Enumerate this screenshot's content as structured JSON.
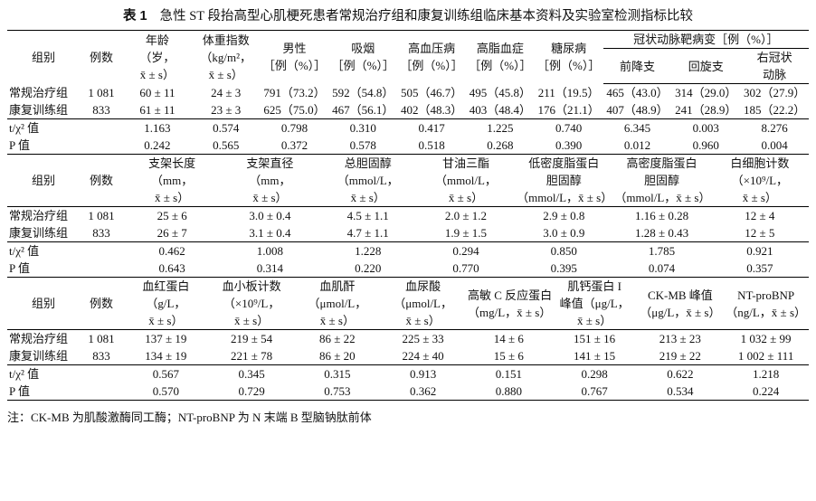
{
  "label": "表 1",
  "title": "急性 ST 段抬高型心肌梗死患者常规治疗组和康复训练组临床基本资料及实验室检测指标比较",
  "sections": [
    {
      "group_label": "组别",
      "n_label": "例数",
      "columns": [
        {
          "lines": [
            "年龄",
            "（岁，",
            "x̄ ± s）"
          ]
        },
        {
          "lines": [
            "体重指数",
            "（kg/m²，",
            "x̄ ± s）"
          ]
        },
        {
          "lines": [
            "男性",
            "［例（%）］"
          ]
        },
        {
          "lines": [
            "吸烟",
            "［例（%）］"
          ]
        },
        {
          "lines": [
            "高血压病",
            "［例（%）］"
          ]
        },
        {
          "lines": [
            "高脂血症",
            "［例（%）］"
          ]
        },
        {
          "lines": [
            "糖尿病",
            "［例（%）］"
          ]
        },
        {
          "title": "冠状动脉靶病变［例（%）］",
          "sub": [
            {
              "lines": [
                "前降支"
              ]
            },
            {
              "lines": [
                "回旋支"
              ]
            },
            {
              "lines": [
                "右冠状",
                "动脉"
              ]
            }
          ]
        }
      ],
      "rows": [
        {
          "label": "常规治疗组",
          "n": "1 081",
          "values": [
            "60 ± 11",
            "24 ± 3",
            "791（73.2）",
            "592（54.8）",
            "505（46.7）",
            "495（45.8）",
            "211（19.5）",
            "465（43.0）",
            "314（29.0）",
            "302（27.9）"
          ]
        },
        {
          "label": "康复训练组",
          "n": "833",
          "values": [
            "61 ± 11",
            "23 ± 3",
            "625（75.0）",
            "467（56.1）",
            "402（48.3）",
            "403（48.4）",
            "176（21.1）",
            "407（48.9）",
            "241（28.9）",
            "185（22.2）"
          ]
        },
        {
          "label": "t/χ² 值",
          "values": [
            "1.163",
            "0.574",
            "0.798",
            "0.310",
            "0.417",
            "1.225",
            "0.740",
            "6.345",
            "0.003",
            "8.276"
          ]
        },
        {
          "label": "P 值",
          "values": [
            "0.242",
            "0.565",
            "0.372",
            "0.578",
            "0.518",
            "0.268",
            "0.390",
            "0.012",
            "0.960",
            "0.004"
          ]
        }
      ]
    },
    {
      "group_label": "组别",
      "n_label": "例数",
      "columns": [
        {
          "lines": [
            "支架长度",
            "（mm，",
            "x̄ ± s）"
          ]
        },
        {
          "lines": [
            "支架直径",
            "（mm，",
            "x̄ ± s）"
          ]
        },
        {
          "lines": [
            "总胆固醇",
            "（mmol/L，",
            "x̄ ± s）"
          ]
        },
        {
          "lines": [
            "甘油三酯",
            "（mmol/L，",
            "x̄ ± s）"
          ]
        },
        {
          "lines": [
            "低密度脂蛋白",
            "胆固醇",
            "（mmol/L，x̄ ± s）"
          ]
        },
        {
          "lines": [
            "高密度脂蛋白",
            "胆固醇",
            "（mmol/L，x̄ ± s）"
          ]
        },
        {
          "lines": [
            "白细胞计数",
            "（×10⁹/L，",
            "x̄ ± s）"
          ]
        }
      ],
      "rows": [
        {
          "label": "常规治疗组",
          "n": "1 081",
          "values": [
            "25 ± 6",
            "3.0 ± 0.4",
            "4.5 ± 1.1",
            "2.0 ± 1.2",
            "2.9 ± 0.8",
            "1.16 ± 0.28",
            "12 ± 4"
          ]
        },
        {
          "label": "康复训练组",
          "n": "833",
          "values": [
            "26 ± 7",
            "3.1 ± 0.4",
            "4.7 ± 1.1",
            "1.9 ± 1.5",
            "3.0 ± 0.9",
            "1.28 ± 0.43",
            "12 ± 5"
          ]
        },
        {
          "label": "t/χ² 值",
          "values": [
            "0.462",
            "1.008",
            "1.228",
            "0.294",
            "0.850",
            "1.785",
            "0.921"
          ]
        },
        {
          "label": "P 值",
          "values": [
            "0.643",
            "0.314",
            "0.220",
            "0.770",
            "0.395",
            "0.074",
            "0.357"
          ]
        }
      ]
    },
    {
      "group_label": "组别",
      "n_label": "例数",
      "columns": [
        {
          "lines": [
            "血红蛋白",
            "（g/L，",
            "x̄ ± s）"
          ]
        },
        {
          "lines": [
            "血小板计数",
            "（×10⁹/L，",
            "x̄ ± s）"
          ]
        },
        {
          "lines": [
            "血肌酐",
            "（μmol/L，",
            "x̄ ± s）"
          ]
        },
        {
          "lines": [
            "血尿酸",
            "（μmol/L，",
            "x̄ ± s）"
          ]
        },
        {
          "lines": [
            "高敏 C 反应蛋白",
            "（mg/L，x̄ ± s）"
          ]
        },
        {
          "lines": [
            "肌钙蛋白 I",
            "峰值（μg/L，",
            "x̄ ± s）"
          ]
        },
        {
          "lines": [
            "CK-MB 峰值",
            "（μg/L，x̄ ± s）"
          ]
        },
        {
          "lines": [
            "NT-proBNP",
            "（ng/L，x̄ ± s）"
          ]
        }
      ],
      "rows": [
        {
          "label": "常规治疗组",
          "n": "1 081",
          "values": [
            "137 ± 19",
            "219 ± 54",
            "86 ± 22",
            "225 ± 33",
            "14 ± 6",
            "151 ± 16",
            "213 ± 23",
            "1 032 ± 99"
          ]
        },
        {
          "label": "康复训练组",
          "n": "833",
          "values": [
            "134 ± 19",
            "221 ± 78",
            "86 ± 20",
            "224 ± 40",
            "15 ± 6",
            "141 ± 15",
            "219 ± 22",
            "1 002 ± 111"
          ]
        },
        {
          "label": "t/χ² 值",
          "values": [
            "0.567",
            "0.345",
            "0.315",
            "0.913",
            "0.151",
            "0.298",
            "0.622",
            "1.218"
          ]
        },
        {
          "label": "P 值",
          "values": [
            "0.570",
            "0.729",
            "0.753",
            "0.362",
            "0.880",
            "0.767",
            "0.534",
            "0.224"
          ]
        }
      ]
    }
  ],
  "note": "注：CK-MB 为肌酸激酶同工酶；NT-proBNP 为 N 末端 B 型脑钠肽前体"
}
